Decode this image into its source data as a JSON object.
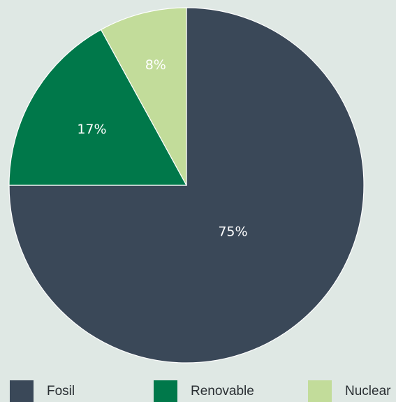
{
  "chart_data": {
    "type": "pie",
    "title": "",
    "categories": [
      "Fosil",
      "Renovable",
      "Nuclear"
    ],
    "values": [
      75,
      17,
      8
    ],
    "labels": [
      "75%",
      "17%",
      "8%"
    ],
    "colors": [
      "#3a4858",
      "#00784a",
      "#c2dc9a"
    ],
    "start_angle_deg": 0,
    "direction": "clockwise",
    "legend_position": "bottom"
  },
  "legend": {
    "items": [
      {
        "label": "Fosil",
        "color": "#3a4858"
      },
      {
        "label": "Renovable",
        "color": "#00784a"
      },
      {
        "label": "Nuclear",
        "color": "#c2dc9a"
      }
    ]
  }
}
